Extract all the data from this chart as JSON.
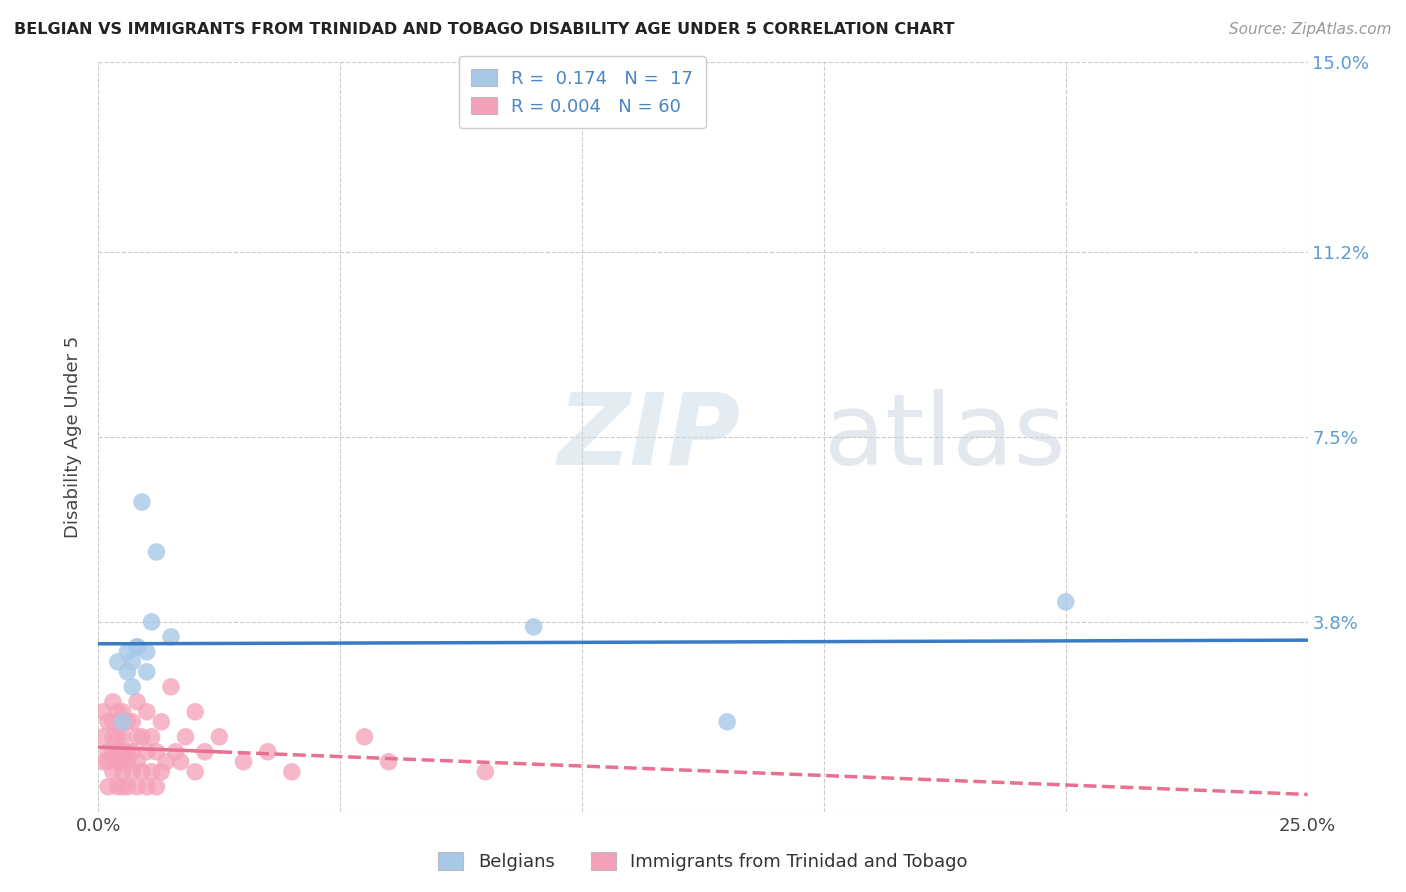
{
  "title": "BELGIAN VS IMMIGRANTS FROM TRINIDAD AND TOBAGO DISABILITY AGE UNDER 5 CORRELATION CHART",
  "source": "Source: ZipAtlas.com",
  "ylabel": "Disability Age Under 5",
  "xlim": [
    0.0,
    0.25
  ],
  "ylim": [
    0.0,
    0.15
  ],
  "xticks": [
    0.0,
    0.05,
    0.1,
    0.15,
    0.2,
    0.25
  ],
  "yticks_right": [
    0.0,
    0.038,
    0.075,
    0.112,
    0.15
  ],
  "ytick_labels_right": [
    "",
    "3.8%",
    "7.5%",
    "11.2%",
    "15.0%"
  ],
  "xtick_labels": [
    "0.0%",
    "",
    "",
    "",
    "",
    "25.0%"
  ],
  "watermark_zip": "ZIP",
  "watermark_atlas": "atlas",
  "legend_R1": "R =  0.174   N =  17",
  "legend_R2": "R = 0.004   N = 60",
  "color_belgian": "#a8c8e8",
  "color_tt": "#f4a0b8",
  "line_color_belgian": "#3a7cc4",
  "line_color_tt": "#e87090",
  "belgians_x": [
    0.004,
    0.005,
    0.006,
    0.006,
    0.007,
    0.007,
    0.008,
    0.008,
    0.009,
    0.01,
    0.01,
    0.011,
    0.012,
    0.015,
    0.09,
    0.13,
    0.2
  ],
  "belgians_y": [
    0.03,
    0.018,
    0.028,
    0.032,
    0.025,
    0.03,
    0.033,
    0.033,
    0.062,
    0.028,
    0.032,
    0.038,
    0.052,
    0.035,
    0.037,
    0.018,
    0.042
  ],
  "tt_x": [
    0.001,
    0.001,
    0.001,
    0.002,
    0.002,
    0.002,
    0.002,
    0.003,
    0.003,
    0.003,
    0.003,
    0.003,
    0.004,
    0.004,
    0.004,
    0.004,
    0.004,
    0.005,
    0.005,
    0.005,
    0.005,
    0.005,
    0.005,
    0.006,
    0.006,
    0.006,
    0.006,
    0.007,
    0.007,
    0.007,
    0.008,
    0.008,
    0.008,
    0.008,
    0.009,
    0.009,
    0.01,
    0.01,
    0.01,
    0.011,
    0.011,
    0.012,
    0.012,
    0.013,
    0.013,
    0.014,
    0.015,
    0.016,
    0.017,
    0.018,
    0.02,
    0.02,
    0.022,
    0.025,
    0.03,
    0.035,
    0.04,
    0.055,
    0.06,
    0.08
  ],
  "tt_y": [
    0.01,
    0.015,
    0.02,
    0.005,
    0.01,
    0.012,
    0.018,
    0.008,
    0.012,
    0.015,
    0.018,
    0.022,
    0.005,
    0.01,
    0.012,
    0.015,
    0.02,
    0.005,
    0.008,
    0.01,
    0.012,
    0.015,
    0.02,
    0.005,
    0.01,
    0.012,
    0.018,
    0.008,
    0.012,
    0.018,
    0.005,
    0.01,
    0.015,
    0.022,
    0.008,
    0.015,
    0.005,
    0.012,
    0.02,
    0.008,
    0.015,
    0.005,
    0.012,
    0.008,
    0.018,
    0.01,
    0.025,
    0.012,
    0.01,
    0.015,
    0.008,
    0.02,
    0.012,
    0.015,
    0.01,
    0.012,
    0.008,
    0.015,
    0.01,
    0.008
  ],
  "background_color": "#ffffff",
  "grid_color": "#cccccc"
}
